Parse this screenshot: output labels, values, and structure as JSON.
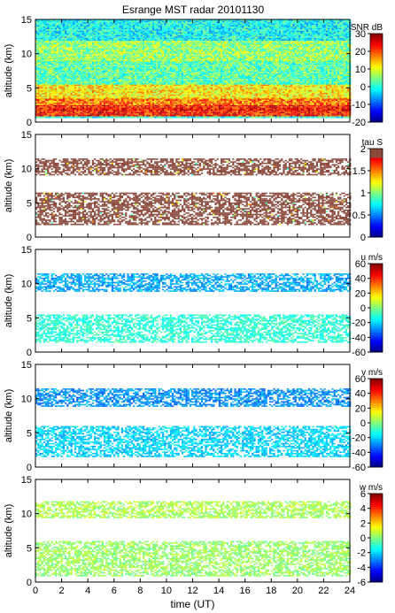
{
  "title": "Esrange MST radar 20101130",
  "chart_data": [
    {
      "type": "heatmap",
      "ylabel": "altitude (km)",
      "ylim": [
        0,
        15
      ],
      "yticks": [
        0,
        5,
        10,
        15
      ],
      "xlim": [
        0,
        24
      ],
      "colorbar": {
        "label": "SNR dB",
        "range": [
          -20,
          30
        ],
        "ticks": [
          -20,
          -10,
          0,
          10,
          20,
          30
        ]
      },
      "layers": [
        {
          "y0": 0.6,
          "y1": 1.0,
          "value": 0
        },
        {
          "y0": 1.0,
          "y1": 2.5,
          "value": 23
        },
        {
          "y0": 2.5,
          "y1": 3.5,
          "value": 18
        },
        {
          "y0": 3.5,
          "y1": 5.5,
          "value": 12
        },
        {
          "y0": 5.5,
          "y1": 9.0,
          "value": 3
        },
        {
          "y0": 9.0,
          "y1": 12.0,
          "value": 6
        },
        {
          "y0": 12.0,
          "y1": 15.0,
          "value": -1
        }
      ]
    },
    {
      "type": "heatmap",
      "ylabel": "altitude (km)",
      "ylim": [
        0,
        15
      ],
      "yticks": [
        0,
        5,
        10,
        15
      ],
      "xlim": [
        0,
        24
      ],
      "colorbar": {
        "label": "tau S",
        "range": [
          0,
          2
        ],
        "ticks": [
          0,
          0.5,
          1,
          1.5,
          2
        ]
      },
      "layers": [
        {
          "y0": 1.8,
          "y1": 6.5,
          "value": 2.0
        },
        {
          "y0": 9.2,
          "y1": 11.5,
          "value": 2.0
        }
      ]
    },
    {
      "type": "heatmap",
      "ylabel": "altitude (km)",
      "ylim": [
        0,
        15
      ],
      "yticks": [
        0,
        5,
        10,
        15
      ],
      "xlim": [
        0,
        24
      ],
      "colorbar": {
        "label": "u m/s",
        "range": [
          -60,
          60
        ],
        "ticks": [
          -60,
          -40,
          -20,
          0,
          20,
          40,
          60
        ]
      },
      "layers": [
        {
          "y0": 1.5,
          "y1": 5.5,
          "value": -10
        },
        {
          "y0": 9.0,
          "y1": 11.5,
          "value": -25
        }
      ]
    },
    {
      "type": "heatmap",
      "ylabel": "altitude (km)",
      "ylim": [
        0,
        15
      ],
      "yticks": [
        0,
        5,
        10,
        15
      ],
      "xlim": [
        0,
        24
      ],
      "colorbar": {
        "label": "v m/s",
        "range": [
          -60,
          60
        ],
        "ticks": [
          -60,
          -40,
          -20,
          0,
          20,
          40,
          60
        ]
      },
      "layers": [
        {
          "y0": 1.5,
          "y1": 6.0,
          "value": -20
        },
        {
          "y0": 9.0,
          "y1": 11.5,
          "value": -28
        }
      ]
    },
    {
      "type": "heatmap",
      "ylabel": "altitude (km)",
      "xlabel": "time (UT)",
      "ylim": [
        0,
        15
      ],
      "yticks": [
        0,
        5,
        10,
        15
      ],
      "xlim": [
        0,
        24
      ],
      "xticks": [
        0,
        2,
        4,
        6,
        8,
        10,
        12,
        14,
        16,
        18,
        20,
        22,
        24
      ],
      "colorbar": {
        "label": "w m/s",
        "range": [
          -6,
          6
        ],
        "ticks": [
          -6,
          -4,
          -2,
          0,
          2,
          4,
          6
        ]
      },
      "layers": [
        {
          "y0": 1.0,
          "y1": 6.0,
          "value": 0.3
        },
        {
          "y0": 9.5,
          "y1": 11.8,
          "value": 0.5
        }
      ]
    }
  ]
}
